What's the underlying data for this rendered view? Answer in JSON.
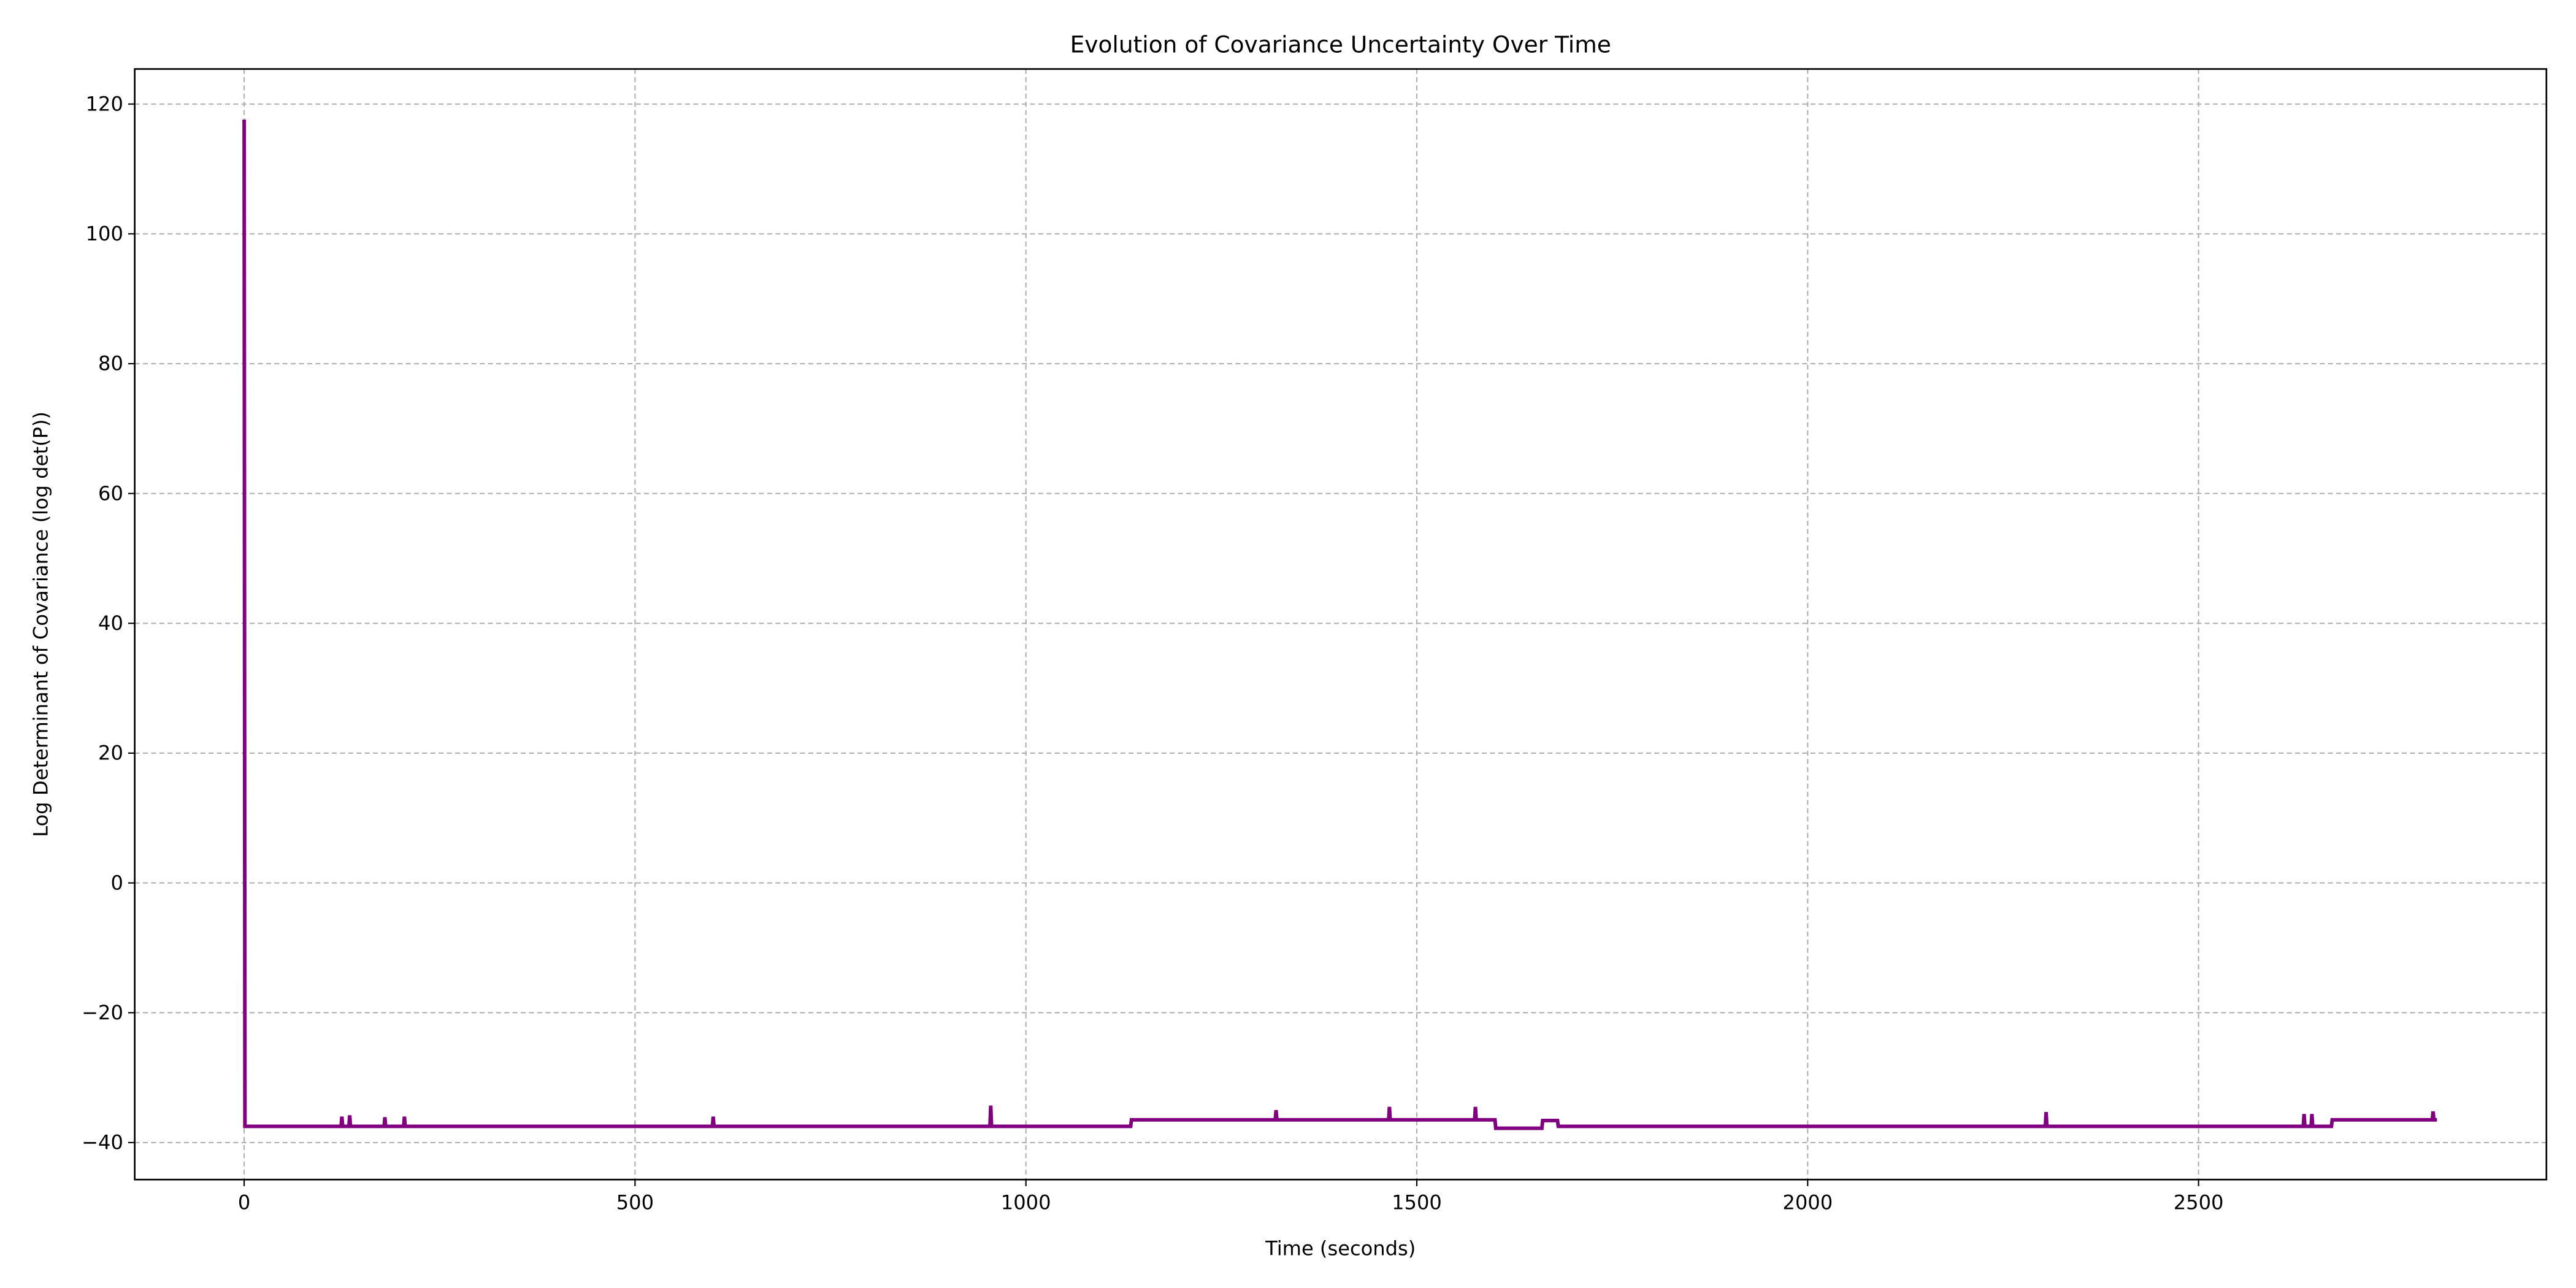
{
  "chart_data": {
    "type": "line",
    "title": "Evolution of Covariance Uncertainty Over Time",
    "xlabel": "Time (seconds)",
    "ylabel": "Log Determinant of Covariance (log det(P))",
    "x": [
      0,
      1,
      124,
      125,
      126,
      134,
      135,
      136,
      179,
      180,
      181,
      204,
      205,
      206,
      599,
      600,
      601,
      954,
      955,
      956,
      1134,
      1135,
      1319,
      1320,
      1321,
      1464,
      1465,
      1466,
      1574,
      1575,
      1576,
      1600,
      1601,
      1660,
      1661,
      1680,
      1681,
      2304,
      2305,
      2306,
      2634,
      2635,
      2636,
      2644,
      2645,
      2646,
      2670,
      2671,
      2799,
      2800,
      2801,
      2805
    ],
    "series": [
      {
        "color": "#800080",
        "values": [
          117.6,
          -37.5,
          -37.5,
          -36,
          -37.5,
          -37.5,
          -35.8,
          -37.5,
          -37.5,
          -36.1,
          -37.5,
          -37.5,
          -36,
          -37.5,
          -37.5,
          -36,
          -37.5,
          -37.5,
          -34.3,
          -37.5,
          -37.5,
          -36.5,
          -36.5,
          -35,
          -36.5,
          -36.5,
          -34.5,
          -36.5,
          -36.5,
          -34.5,
          -36.5,
          -36.5,
          -37.8,
          -37.8,
          -36.6,
          -36.6,
          -37.5,
          -37.5,
          -35.3,
          -37.5,
          -37.5,
          -35.6,
          -37.5,
          -37.5,
          -35.6,
          -37.5,
          -37.5,
          -36.5,
          -36.5,
          -35.2,
          -36.5,
          -36.5
        ]
      }
    ],
    "xlim": [
      -140,
      2945
    ],
    "ylim": [
      -45.7,
      125.4
    ],
    "xticks": [
      0,
      500,
      1000,
      1500,
      2000,
      2500
    ],
    "yticks": [
      {
        "value": -40,
        "label": "−40"
      },
      {
        "value": -20,
        "label": "−20"
      },
      0,
      20,
      40,
      60,
      80,
      100,
      120
    ],
    "grid": true
  }
}
